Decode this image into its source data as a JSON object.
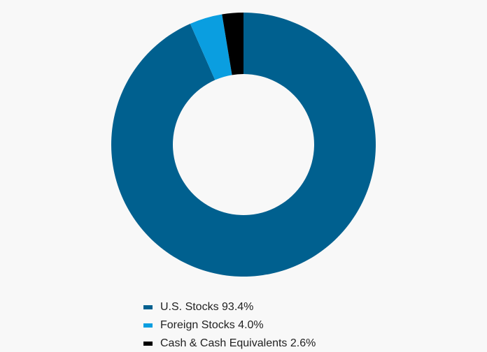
{
  "chart_data": {
    "type": "donut",
    "categories": [
      "U.S. Stocks",
      "Foreign Stocks",
      "Cash & Cash Equivalents"
    ],
    "values": [
      93.4,
      4.0,
      2.6
    ],
    "value_labels": [
      "93.4%",
      "4.0%",
      "2.6%"
    ],
    "colors": [
      "#00608f",
      "#0a9ee0",
      "#000000"
    ]
  }
}
